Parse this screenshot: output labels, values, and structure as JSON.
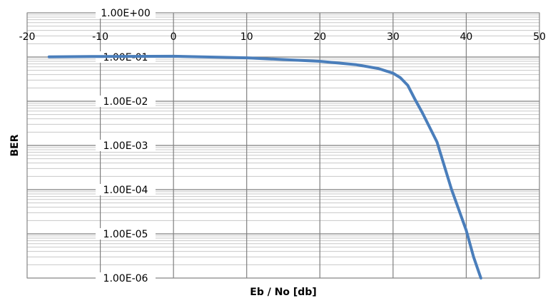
{
  "chart_data": {
    "type": "line",
    "title": "",
    "xlabel": "Eb / No [db]",
    "ylabel": "BER",
    "xlim": [
      -20,
      50
    ],
    "ylim": [
      1e-06,
      1
    ],
    "y_scale": "log",
    "x_ticks": [
      -20,
      -10,
      0,
      10,
      20,
      30,
      40,
      50
    ],
    "x_tick_labels": [
      "-20",
      "-10",
      "0",
      "10",
      "20",
      "30",
      "40",
      "50"
    ],
    "y_ticks": [
      1,
      0.1,
      0.01,
      0.001,
      0.0001,
      1e-05,
      1e-06
    ],
    "y_tick_labels": [
      "1.00E+00",
      "1.00E-01",
      "1.00E-02",
      "1.00E-03",
      "1.00E-04",
      "1.00E-05",
      "1.00E-06"
    ],
    "grid": true,
    "legend": "none",
    "line_color": "#4a7ebb",
    "series": [
      {
        "x": [
          -17,
          -10,
          0,
          10,
          20,
          25,
          28,
          30,
          31,
          32,
          33,
          34,
          36,
          38,
          40,
          41,
          42
        ],
        "y": [
          0.101,
          0.103,
          0.104,
          0.096,
          0.08,
          0.067,
          0.055,
          0.043,
          0.034,
          0.023,
          0.011,
          0.0055,
          0.0012,
          0.0001,
          1.2e-05,
          3e-06,
          1e-06
        ]
      }
    ]
  }
}
